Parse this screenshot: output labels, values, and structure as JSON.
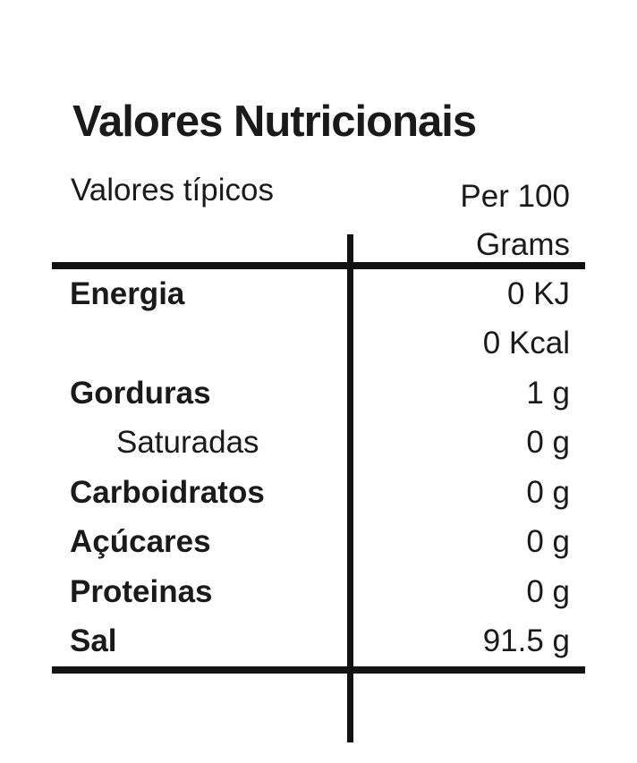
{
  "title": "Valores Nutricionais",
  "header": {
    "left_label": "Valores típicos",
    "right_line1": "Per 100",
    "right_line2": "Grams"
  },
  "rows": [
    {
      "label": "Energia",
      "value": "0 KJ",
      "bold": true,
      "indent": false
    },
    {
      "label": "",
      "value": "0 Kcal",
      "bold": false,
      "indent": false
    },
    {
      "label": "Gorduras",
      "value": "1 g",
      "bold": true,
      "indent": false
    },
    {
      "label": "Saturadas",
      "value": "0 g",
      "bold": false,
      "indent": true
    },
    {
      "label": "Carboidratos",
      "value": "0 g",
      "bold": true,
      "indent": false
    },
    {
      "label": "Açúcares",
      "value": "0 g",
      "bold": true,
      "indent": false
    },
    {
      "label": "Proteinas",
      "value": "0 g",
      "bold": true,
      "indent": false
    },
    {
      "label": "Sal",
      "value": "91.5 g",
      "bold": true,
      "indent": false
    }
  ],
  "colors": {
    "text": "#1a1a1a",
    "rule": "#121212",
    "background": "#ffffff"
  }
}
